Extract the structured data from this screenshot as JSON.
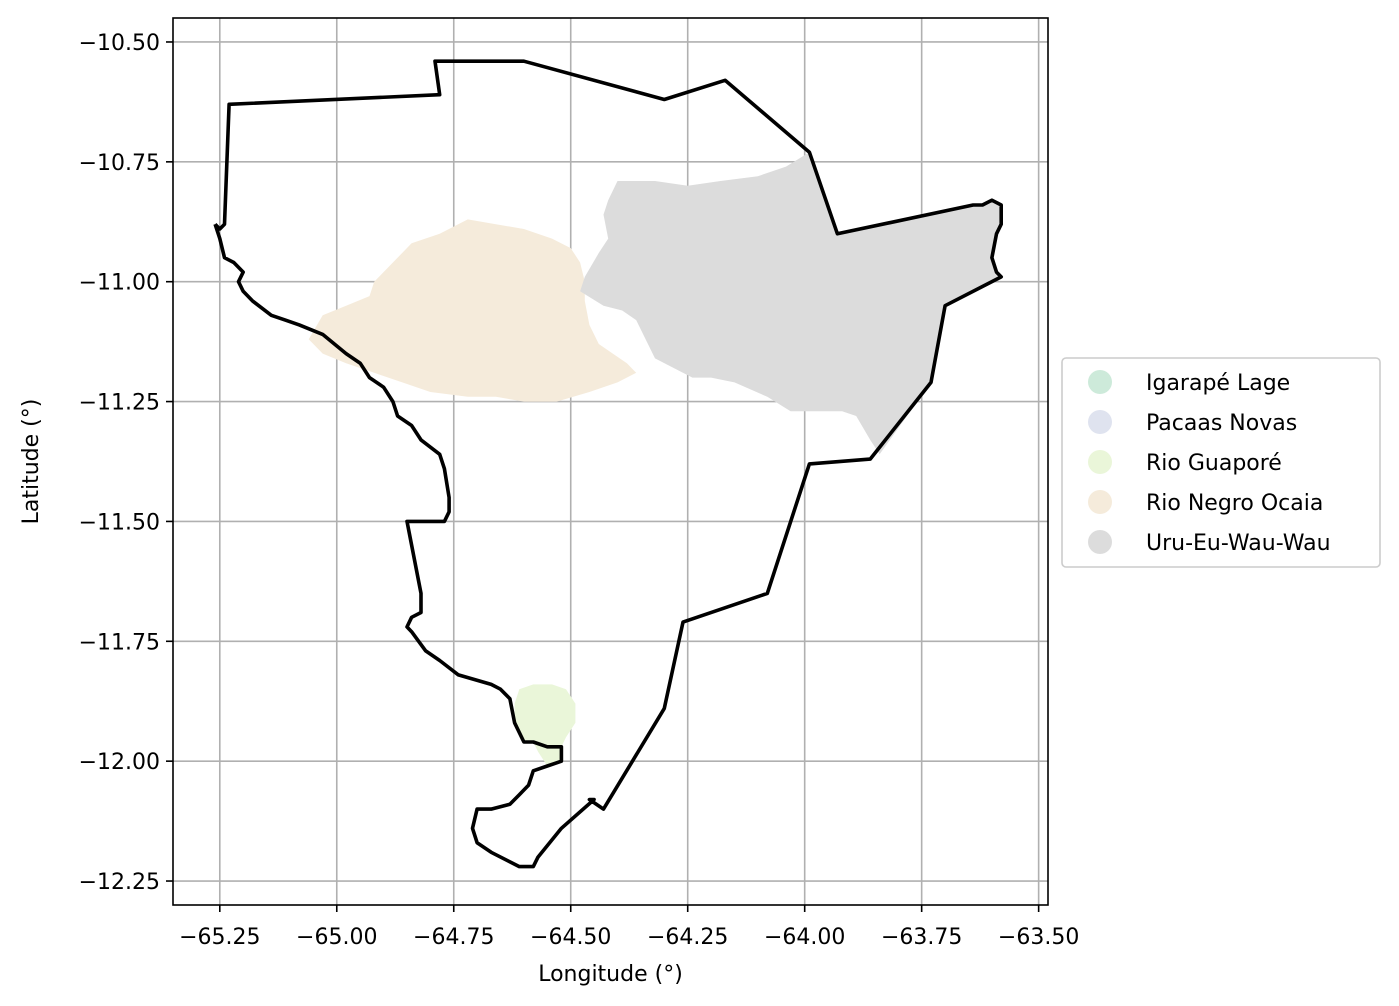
{
  "chart_data": {
    "type": "map",
    "xlabel": "Longitude (°)",
    "ylabel": "Latitude (°)",
    "xlim": [
      -65.35,
      -63.48
    ],
    "ylim": [
      -12.3,
      -10.45
    ],
    "x_ticks": [
      -65.25,
      -65.0,
      -64.75,
      -64.5,
      -64.25,
      -64.0,
      -63.75,
      -63.5
    ],
    "x_tick_labels": [
      "−65.25",
      "−65.00",
      "−64.75",
      "−64.50",
      "−64.25",
      "−64.00",
      "−63.75",
      "−63.50"
    ],
    "y_ticks": [
      -10.5,
      -10.75,
      -11.0,
      -11.25,
      -11.5,
      -11.75,
      -12.0,
      -12.25
    ],
    "y_tick_labels": [
      "−10.50",
      "−10.75",
      "−11.00",
      "−11.25",
      "−11.50",
      "−11.75",
      "−12.00",
      "−12.25"
    ],
    "grid": true,
    "legend": {
      "position": "right",
      "entries": [
        {
          "name": "Igarapé Lage",
          "color": "#cdeada"
        },
        {
          "name": "Pacaas Novas",
          "color": "#dfe3ef"
        },
        {
          "name": "Rio Guaporé",
          "color": "#eaf6d9"
        },
        {
          "name": "Rio Negro Ocaia",
          "color": "#f5ebdb"
        },
        {
          "name": "Uru-Eu-Wau-Wau",
          "color": "#dcdcdc"
        }
      ]
    },
    "boundary": {
      "color": "#000000",
      "points": [
        [
          -65.26,
          -10.88
        ],
        [
          -65.25,
          -10.89
        ],
        [
          -65.24,
          -10.88
        ],
        [
          -65.23,
          -10.63
        ],
        [
          -64.78,
          -10.61
        ],
        [
          -64.79,
          -10.54
        ],
        [
          -64.6,
          -10.54
        ],
        [
          -64.3,
          -10.62
        ],
        [
          -64.17,
          -10.58
        ],
        [
          -63.99,
          -10.73
        ],
        [
          -63.93,
          -10.9
        ],
        [
          -63.64,
          -10.84
        ],
        [
          -63.62,
          -10.84
        ],
        [
          -63.6,
          -10.83
        ],
        [
          -63.58,
          -10.84
        ],
        [
          -63.58,
          -10.88
        ],
        [
          -63.59,
          -10.9
        ],
        [
          -63.6,
          -10.95
        ],
        [
          -63.59,
          -10.98
        ],
        [
          -63.58,
          -10.99
        ],
        [
          -63.7,
          -11.05
        ],
        [
          -63.73,
          -11.21
        ],
        [
          -63.86,
          -11.37
        ],
        [
          -63.99,
          -11.38
        ],
        [
          -64.08,
          -11.65
        ],
        [
          -64.26,
          -11.71
        ],
        [
          -64.3,
          -11.89
        ],
        [
          -64.43,
          -12.1
        ],
        [
          -64.46,
          -12.08
        ],
        [
          -64.45,
          -12.08
        ],
        [
          -64.52,
          -12.14
        ],
        [
          -64.57,
          -12.2
        ],
        [
          -64.58,
          -12.22
        ],
        [
          -64.61,
          -12.22
        ],
        [
          -64.67,
          -12.19
        ],
        [
          -64.7,
          -12.17
        ],
        [
          -64.71,
          -12.14
        ],
        [
          -64.7,
          -12.1
        ],
        [
          -64.67,
          -12.1
        ],
        [
          -64.63,
          -12.09
        ],
        [
          -64.61,
          -12.07
        ],
        [
          -64.59,
          -12.05
        ],
        [
          -64.58,
          -12.02
        ],
        [
          -64.55,
          -12.01
        ],
        [
          -64.52,
          -12.0
        ],
        [
          -64.52,
          -11.97
        ],
        [
          -64.55,
          -11.97
        ],
        [
          -64.58,
          -11.96
        ],
        [
          -64.6,
          -11.96
        ],
        [
          -64.62,
          -11.92
        ],
        [
          -64.63,
          -11.87
        ],
        [
          -64.65,
          -11.85
        ],
        [
          -64.67,
          -11.84
        ],
        [
          -64.74,
          -11.82
        ],
        [
          -64.78,
          -11.79
        ],
        [
          -64.81,
          -11.77
        ],
        [
          -64.84,
          -11.73
        ],
        [
          -64.85,
          -11.72
        ],
        [
          -64.84,
          -11.7
        ],
        [
          -64.82,
          -11.69
        ],
        [
          -64.82,
          -11.65
        ],
        [
          -64.85,
          -11.5
        ],
        [
          -64.77,
          -11.5
        ],
        [
          -64.76,
          -11.48
        ],
        [
          -64.76,
          -11.45
        ],
        [
          -64.77,
          -11.39
        ],
        [
          -64.78,
          -11.36
        ],
        [
          -64.82,
          -11.33
        ],
        [
          -64.84,
          -11.3
        ],
        [
          -64.87,
          -11.28
        ],
        [
          -64.88,
          -11.25
        ],
        [
          -64.9,
          -11.22
        ],
        [
          -64.93,
          -11.2
        ],
        [
          -64.95,
          -11.17
        ],
        [
          -64.98,
          -11.15
        ],
        [
          -65.03,
          -11.11
        ],
        [
          -65.08,
          -11.09
        ],
        [
          -65.11,
          -11.08
        ],
        [
          -65.14,
          -11.07
        ],
        [
          -65.18,
          -11.04
        ],
        [
          -65.2,
          -11.02
        ],
        [
          -65.21,
          -11.0
        ],
        [
          -65.2,
          -10.98
        ],
        [
          -65.22,
          -10.96
        ],
        [
          -65.24,
          -10.95
        ],
        [
          -65.25,
          -10.91
        ],
        [
          -65.26,
          -10.88
        ]
      ]
    },
    "areas": [
      {
        "name": "Rio Negro Ocaia",
        "color": "#f5ebdb",
        "points": [
          [
            -65.06,
            -11.12
          ],
          [
            -65.03,
            -11.07
          ],
          [
            -64.98,
            -11.05
          ],
          [
            -64.93,
            -11.03
          ],
          [
            -64.92,
            -11.0
          ],
          [
            -64.88,
            -10.96
          ],
          [
            -64.84,
            -10.92
          ],
          [
            -64.78,
            -10.9
          ],
          [
            -64.72,
            -10.87
          ],
          [
            -64.66,
            -10.88
          ],
          [
            -64.6,
            -10.89
          ],
          [
            -64.54,
            -10.91
          ],
          [
            -64.5,
            -10.93
          ],
          [
            -64.48,
            -10.96
          ],
          [
            -64.47,
            -11.0
          ],
          [
            -64.47,
            -11.04
          ],
          [
            -64.46,
            -11.09
          ],
          [
            -64.44,
            -11.13
          ],
          [
            -64.41,
            -11.15
          ],
          [
            -64.38,
            -11.17
          ],
          [
            -64.36,
            -11.19
          ],
          [
            -64.4,
            -11.21
          ],
          [
            -64.46,
            -11.23
          ],
          [
            -64.53,
            -11.25
          ],
          [
            -64.6,
            -11.25
          ],
          [
            -64.66,
            -11.24
          ],
          [
            -64.72,
            -11.24
          ],
          [
            -64.8,
            -11.23
          ],
          [
            -64.86,
            -11.21
          ],
          [
            -64.92,
            -11.19
          ],
          [
            -64.98,
            -11.17
          ],
          [
            -65.03,
            -11.15
          ],
          [
            -65.06,
            -11.12
          ]
        ]
      },
      {
        "name": "Uru-Eu-Wau-Wau",
        "color": "#dcdcdc",
        "points": [
          [
            -64.48,
            -11.02
          ],
          [
            -64.47,
            -10.99
          ],
          [
            -64.44,
            -10.94
          ],
          [
            -64.42,
            -10.91
          ],
          [
            -64.43,
            -10.86
          ],
          [
            -64.42,
            -10.83
          ],
          [
            -64.4,
            -10.79
          ],
          [
            -64.32,
            -10.79
          ],
          [
            -64.25,
            -10.8
          ],
          [
            -64.18,
            -10.79
          ],
          [
            -64.1,
            -10.78
          ],
          [
            -64.04,
            -10.76
          ],
          [
            -63.99,
            -10.73
          ],
          [
            -63.93,
            -10.9
          ],
          [
            -63.64,
            -10.84
          ],
          [
            -63.62,
            -10.84
          ],
          [
            -63.6,
            -10.83
          ],
          [
            -63.58,
            -10.84
          ],
          [
            -63.58,
            -10.88
          ],
          [
            -63.59,
            -10.9
          ],
          [
            -63.6,
            -10.95
          ],
          [
            -63.59,
            -10.98
          ],
          [
            -63.58,
            -10.99
          ],
          [
            -63.7,
            -11.05
          ],
          [
            -63.73,
            -11.21
          ],
          [
            -63.84,
            -11.36
          ],
          [
            -63.86,
            -11.33
          ],
          [
            -63.89,
            -11.28
          ],
          [
            -63.92,
            -11.27
          ],
          [
            -63.97,
            -11.27
          ],
          [
            -64.03,
            -11.27
          ],
          [
            -64.08,
            -11.24
          ],
          [
            -64.15,
            -11.21
          ],
          [
            -64.2,
            -11.2
          ],
          [
            -64.24,
            -11.2
          ],
          [
            -64.28,
            -11.18
          ],
          [
            -64.32,
            -11.16
          ],
          [
            -64.34,
            -11.12
          ],
          [
            -64.36,
            -11.08
          ],
          [
            -64.39,
            -11.06
          ],
          [
            -64.43,
            -11.05
          ],
          [
            -64.48,
            -11.02
          ]
        ]
      },
      {
        "name": "Rio Guaporé",
        "color": "#eaf6d9",
        "points": [
          [
            -64.61,
            -11.85
          ],
          [
            -64.58,
            -11.84
          ],
          [
            -64.54,
            -11.84
          ],
          [
            -64.51,
            -11.85
          ],
          [
            -64.49,
            -11.88
          ],
          [
            -64.49,
            -11.92
          ],
          [
            -64.51,
            -11.95
          ],
          [
            -64.52,
            -11.97
          ],
          [
            -64.52,
            -12.0
          ],
          [
            -64.55,
            -12.01
          ],
          [
            -64.57,
            -11.98
          ],
          [
            -64.58,
            -11.96
          ],
          [
            -64.6,
            -11.96
          ],
          [
            -64.62,
            -11.92
          ],
          [
            -64.62,
            -11.88
          ],
          [
            -64.61,
            -11.85
          ]
        ]
      }
    ]
  }
}
